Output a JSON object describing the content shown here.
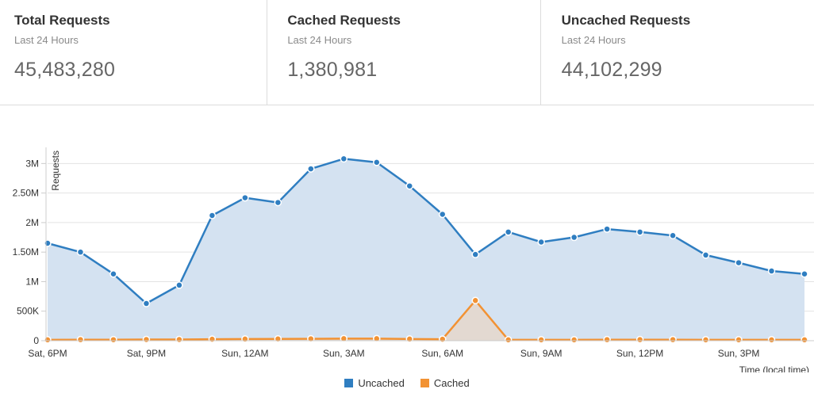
{
  "stats": [
    {
      "title": "Total Requests",
      "subtitle": "Last 24 Hours",
      "value": "45,483,280"
    },
    {
      "title": "Cached Requests",
      "subtitle": "Last 24 Hours",
      "value": "1,380,981"
    },
    {
      "title": "Uncached Requests",
      "subtitle": "Last 24 Hours",
      "value": "44,102,299"
    }
  ],
  "colors": {
    "uncached_line": "#2f7ec1",
    "uncached_fill": "#d4e2f1",
    "cached_line": "#f29233",
    "cached_fill": "#e4d8cf"
  },
  "chart_data": {
    "type": "area",
    "ylabel": "Requests",
    "xlabel": "Time (local time)",
    "ylim": [
      0,
      3300000
    ],
    "yticks": [
      {
        "value": 0,
        "label": "0"
      },
      {
        "value": 500000,
        "label": "500K"
      },
      {
        "value": 1000000,
        "label": "1M"
      },
      {
        "value": 1500000,
        "label": "1.50M"
      },
      {
        "value": 2000000,
        "label": "2M"
      },
      {
        "value": 2500000,
        "label": "2.50M"
      },
      {
        "value": 3000000,
        "label": "3M"
      }
    ],
    "xticks": [
      {
        "index": 0,
        "label": "Sat, 6PM"
      },
      {
        "index": 3,
        "label": "Sat, 9PM"
      },
      {
        "index": 6,
        "label": "Sun, 12AM"
      },
      {
        "index": 9,
        "label": "Sun, 3AM"
      },
      {
        "index": 12,
        "label": "Sun, 6AM"
      },
      {
        "index": 15,
        "label": "Sun, 9AM"
      },
      {
        "index": 18,
        "label": "Sun, 12PM"
      },
      {
        "index": 21,
        "label": "Sun, 3PM"
      }
    ],
    "x": [
      "Sat 6PM",
      "Sat 7PM",
      "Sat 8PM",
      "Sat 9PM",
      "Sat 10PM",
      "Sat 11PM",
      "Sun 12AM",
      "Sun 1AM",
      "Sun 2AM",
      "Sun 3AM",
      "Sun 4AM",
      "Sun 5AM",
      "Sun 6AM",
      "Sun 7AM",
      "Sun 8AM",
      "Sun 9AM",
      "Sun 10AM",
      "Sun 11AM",
      "Sun 12PM",
      "Sun 1PM",
      "Sun 2PM",
      "Sun 3PM",
      "Sun 4PM",
      "Sun 5PM"
    ],
    "series": [
      {
        "name": "Uncached",
        "values": [
          1650000,
          1500000,
          1130000,
          630000,
          940000,
          2120000,
          2420000,
          2340000,
          2910000,
          3080000,
          3020000,
          2620000,
          2140000,
          1460000,
          1840000,
          1670000,
          1750000,
          1890000,
          1840000,
          1780000,
          1450000,
          1320000,
          1180000,
          1130000
        ]
      },
      {
        "name": "Cached",
        "values": [
          15000,
          18000,
          17000,
          20000,
          20000,
          25000,
          28000,
          30000,
          32000,
          35000,
          35000,
          28000,
          25000,
          680000,
          15000,
          15000,
          15000,
          18000,
          18000,
          18000,
          15000,
          15000,
          15000,
          15000
        ]
      }
    ],
    "legend": [
      "Uncached",
      "Cached"
    ],
    "legend_position": "bottom",
    "grid": true
  }
}
